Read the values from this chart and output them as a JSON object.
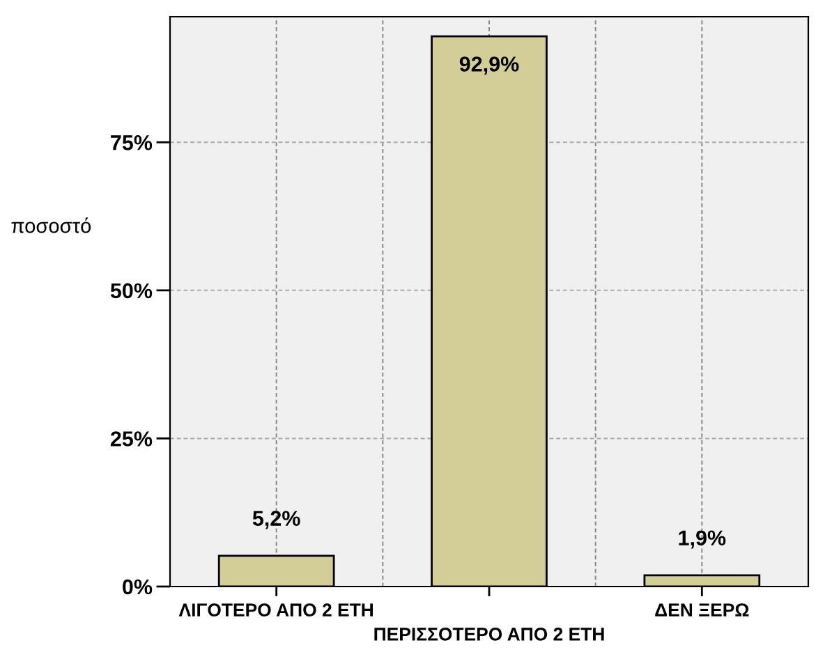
{
  "chart_data": {
    "type": "bar",
    "ylabel": "ποσοστό",
    "categories": [
      "ΛΙΓΟΤΕΡΟ ΑΠΟ 2 ΕΤΗ",
      "ΠΕΡΙΣΣΟΤΕΡΟ ΑΠΟ 2 ΕΤΗ",
      "ΔΕΝ ΞΕΡΩ"
    ],
    "values": [
      5.2,
      92.9,
      1.9
    ],
    "color": "#d3ce98",
    "value_labels": [
      "5,2%",
      "92,9%",
      "1,9%"
    ],
    "ylim": [
      0,
      96.2
    ],
    "yticks": [
      {
        "value": 0,
        "label": "0%"
      },
      {
        "value": 25,
        "label": "25%"
      },
      {
        "value": 50,
        "label": "50%"
      },
      {
        "value": 75,
        "label": "75%"
      }
    ],
    "grid": true,
    "legend": false
  }
}
